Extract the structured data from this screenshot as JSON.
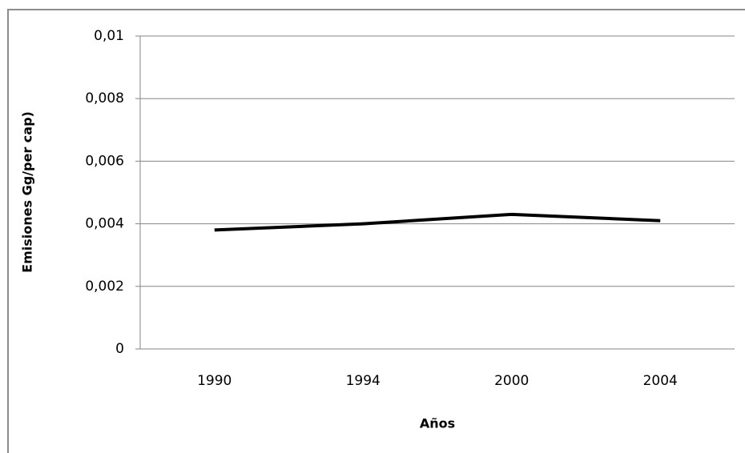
{
  "chart_data": {
    "type": "line",
    "x_label": "Años",
    "y_label": "Emisiones Gg/per cap)",
    "categories": [
      "1990",
      "1994",
      "2000",
      "2004"
    ],
    "series": [
      {
        "color": "#000000",
        "values": [
          0.0038,
          0.004,
          0.0043,
          0.0041
        ]
      }
    ],
    "ylim": [
      0,
      0.01
    ],
    "yticks": [
      0,
      {
        "value": 0.002,
        "label": "0,002"
      },
      {
        "value": 0.004,
        "label": "0,004"
      },
      {
        "value": 0.006,
        "label": "0,006"
      },
      {
        "value": 0.008,
        "label": "0,008"
      },
      {
        "value": 0.01,
        "label": "0,01"
      }
    ],
    "grid": true
  }
}
